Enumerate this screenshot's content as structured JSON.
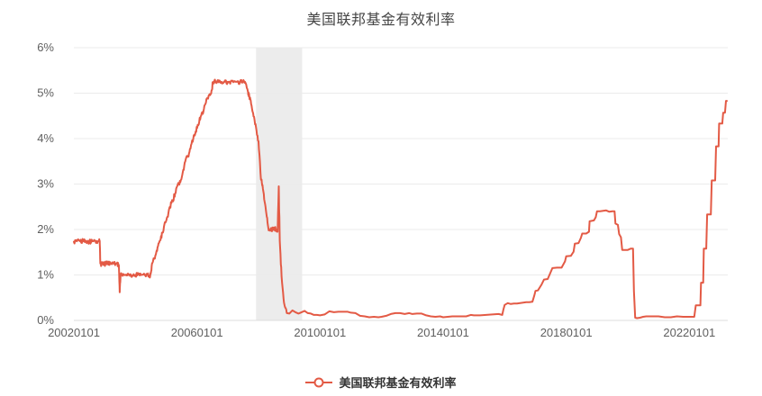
{
  "title": "美国联邦基金有效利率",
  "legend": {
    "label": "美国联邦基金有效利率"
  },
  "colors": {
    "line": "#e35a45",
    "grid": "#ebebeb",
    "axis_line": "#dddddd",
    "tick_text": "#5f5f5f",
    "title_text": "#454545",
    "band": "#ececec",
    "background": "#ffffff"
  },
  "chart_data": {
    "type": "line",
    "title": "美国联邦基金有效利率",
    "xlabel": "",
    "ylabel": "",
    "grid": "horizontal-only",
    "legend_position": "bottom-center",
    "x_range": [
      2002.0,
      2023.25
    ],
    "y_range": [
      0,
      6
    ],
    "y_ticks": [
      {
        "value": 0,
        "label": "0%"
      },
      {
        "value": 1,
        "label": "1%"
      },
      {
        "value": 2,
        "label": "2%"
      },
      {
        "value": 3,
        "label": "3%"
      },
      {
        "value": 4,
        "label": "4%"
      },
      {
        "value": 5,
        "label": "5%"
      },
      {
        "value": 6,
        "label": "6%"
      }
    ],
    "x_ticks": [
      {
        "year": 2002.0,
        "label": "20020101"
      },
      {
        "year": 2006.0,
        "label": "20060101"
      },
      {
        "year": 2010.0,
        "label": "20100101"
      },
      {
        "year": 2014.0,
        "label": "20140101"
      },
      {
        "year": 2018.0,
        "label": "20180101"
      },
      {
        "year": 2022.0,
        "label": "20220101"
      }
    ],
    "recession_band": {
      "from_year": 2007.92,
      "to_year": 2009.42,
      "color": "#ececec"
    },
    "noise_hint": {
      "until_year": 2008.95,
      "amplitude": 0.05,
      "subdivisions": 4
    },
    "series": [
      {
        "name": "美国联邦基金有效利率",
        "color": "#e35a45",
        "points": [
          [
            2002.0,
            1.73
          ],
          [
            2002.1,
            1.74
          ],
          [
            2002.2,
            1.74
          ],
          [
            2002.3,
            1.75
          ],
          [
            2002.4,
            1.75
          ],
          [
            2002.5,
            1.73
          ],
          [
            2002.6,
            1.74
          ],
          [
            2002.7,
            1.75
          ],
          [
            2002.8,
            1.75
          ],
          [
            2002.84,
            1.75
          ],
          [
            2002.86,
            1.25
          ],
          [
            2002.9,
            1.24
          ],
          [
            2003.0,
            1.24
          ],
          [
            2003.05,
            1.26
          ],
          [
            2003.1,
            1.25
          ],
          [
            2003.2,
            1.26
          ],
          [
            2003.3,
            1.25
          ],
          [
            2003.4,
            1.25
          ],
          [
            2003.46,
            1.22
          ],
          [
            2003.49,
            0.62
          ],
          [
            2003.52,
            1.01
          ],
          [
            2003.6,
            1.02
          ],
          [
            2003.7,
            1.01
          ],
          [
            2003.8,
            1.01
          ],
          [
            2003.9,
            0.99
          ],
          [
            2004.0,
            1.0
          ],
          [
            2004.1,
            1.01
          ],
          [
            2004.2,
            1.0
          ],
          [
            2004.3,
            1.0
          ],
          [
            2004.4,
            1.0
          ],
          [
            2004.45,
            0.96
          ],
          [
            2004.5,
            1.03
          ],
          [
            2004.55,
            1.26
          ],
          [
            2004.65,
            1.43
          ],
          [
            2004.72,
            1.61
          ],
          [
            2004.8,
            1.76
          ],
          [
            2004.88,
            1.93
          ],
          [
            2004.96,
            2.16
          ],
          [
            2005.04,
            2.28
          ],
          [
            2005.12,
            2.5
          ],
          [
            2005.21,
            2.63
          ],
          [
            2005.29,
            2.79
          ],
          [
            2005.38,
            3.0
          ],
          [
            2005.46,
            3.04
          ],
          [
            2005.54,
            3.26
          ],
          [
            2005.62,
            3.5
          ],
          [
            2005.71,
            3.62
          ],
          [
            2005.79,
            3.78
          ],
          [
            2005.88,
            4.0
          ],
          [
            2005.96,
            4.16
          ],
          [
            2006.04,
            4.29
          ],
          [
            2006.12,
            4.49
          ],
          [
            2006.21,
            4.59
          ],
          [
            2006.29,
            4.79
          ],
          [
            2006.38,
            4.94
          ],
          [
            2006.46,
            4.99
          ],
          [
            2006.52,
            5.24
          ],
          [
            2006.6,
            5.25
          ],
          [
            2006.7,
            5.24
          ],
          [
            2006.8,
            5.25
          ],
          [
            2006.9,
            5.25
          ],
          [
            2007.0,
            5.25
          ],
          [
            2007.1,
            5.26
          ],
          [
            2007.2,
            5.26
          ],
          [
            2007.3,
            5.25
          ],
          [
            2007.4,
            5.25
          ],
          [
            2007.5,
            5.26
          ],
          [
            2007.56,
            5.25
          ],
          [
            2007.66,
            5.02
          ],
          [
            2007.7,
            4.94
          ],
          [
            2007.76,
            4.76
          ],
          [
            2007.84,
            4.49
          ],
          [
            2007.92,
            4.24
          ],
          [
            2008.0,
            3.94
          ],
          [
            2008.08,
            3.1
          ],
          [
            2008.13,
            2.98
          ],
          [
            2008.2,
            2.61
          ],
          [
            2008.27,
            2.28
          ],
          [
            2008.33,
            1.98
          ],
          [
            2008.42,
            2.0
          ],
          [
            2008.5,
            2.01
          ],
          [
            2008.58,
            2.0
          ],
          [
            2008.62,
            1.95
          ],
          [
            2008.66,
            2.95
          ],
          [
            2008.69,
            1.75
          ],
          [
            2008.75,
            0.97
          ],
          [
            2008.83,
            0.39
          ],
          [
            2008.92,
            0.16
          ],
          [
            2009.0,
            0.15
          ],
          [
            2009.1,
            0.22
          ],
          [
            2009.2,
            0.18
          ],
          [
            2009.3,
            0.15
          ],
          [
            2009.4,
            0.18
          ],
          [
            2009.5,
            0.21
          ],
          [
            2009.6,
            0.16
          ],
          [
            2009.7,
            0.15
          ],
          [
            2009.8,
            0.12
          ],
          [
            2009.9,
            0.12
          ],
          [
            2010.0,
            0.11
          ],
          [
            2010.15,
            0.13
          ],
          [
            2010.3,
            0.2
          ],
          [
            2010.45,
            0.18
          ],
          [
            2010.6,
            0.19
          ],
          [
            2010.75,
            0.19
          ],
          [
            2010.9,
            0.19
          ],
          [
            2011.0,
            0.17
          ],
          [
            2011.15,
            0.16
          ],
          [
            2011.3,
            0.1
          ],
          [
            2011.45,
            0.09
          ],
          [
            2011.6,
            0.07
          ],
          [
            2011.75,
            0.08
          ],
          [
            2011.9,
            0.07
          ],
          [
            2012.0,
            0.08
          ],
          [
            2012.15,
            0.1
          ],
          [
            2012.3,
            0.14
          ],
          [
            2012.45,
            0.16
          ],
          [
            2012.6,
            0.16
          ],
          [
            2012.75,
            0.14
          ],
          [
            2012.9,
            0.16
          ],
          [
            2013.0,
            0.14
          ],
          [
            2013.15,
            0.15
          ],
          [
            2013.3,
            0.15
          ],
          [
            2013.45,
            0.11
          ],
          [
            2013.6,
            0.09
          ],
          [
            2013.75,
            0.08
          ],
          [
            2013.9,
            0.09
          ],
          [
            2014.0,
            0.07
          ],
          [
            2014.15,
            0.08
          ],
          [
            2014.3,
            0.09
          ],
          [
            2014.45,
            0.09
          ],
          [
            2014.6,
            0.09
          ],
          [
            2014.75,
            0.09
          ],
          [
            2014.9,
            0.12
          ],
          [
            2015.0,
            0.11
          ],
          [
            2015.2,
            0.11
          ],
          [
            2015.4,
            0.12
          ],
          [
            2015.6,
            0.13
          ],
          [
            2015.8,
            0.14
          ],
          [
            2015.92,
            0.12
          ],
          [
            2015.96,
            0.24
          ],
          [
            2016.0,
            0.34
          ],
          [
            2016.1,
            0.38
          ],
          [
            2016.2,
            0.36
          ],
          [
            2016.3,
            0.37
          ],
          [
            2016.4,
            0.37
          ],
          [
            2016.5,
            0.38
          ],
          [
            2016.6,
            0.39
          ],
          [
            2016.7,
            0.4
          ],
          [
            2016.8,
            0.4
          ],
          [
            2016.9,
            0.41
          ],
          [
            2016.96,
            0.54
          ],
          [
            2017.0,
            0.65
          ],
          [
            2017.08,
            0.66
          ],
          [
            2017.2,
            0.79
          ],
          [
            2017.28,
            0.9
          ],
          [
            2017.4,
            0.91
          ],
          [
            2017.48,
            1.04
          ],
          [
            2017.55,
            1.15
          ],
          [
            2017.7,
            1.16
          ],
          [
            2017.85,
            1.16
          ],
          [
            2017.96,
            1.3
          ],
          [
            2018.0,
            1.41
          ],
          [
            2018.15,
            1.42
          ],
          [
            2018.24,
            1.51
          ],
          [
            2018.28,
            1.69
          ],
          [
            2018.4,
            1.7
          ],
          [
            2018.48,
            1.82
          ],
          [
            2018.52,
            1.91
          ],
          [
            2018.65,
            1.91
          ],
          [
            2018.74,
            1.95
          ],
          [
            2018.76,
            2.18
          ],
          [
            2018.9,
            2.2
          ],
          [
            2018.96,
            2.27
          ],
          [
            2019.0,
            2.4
          ],
          [
            2019.1,
            2.4
          ],
          [
            2019.2,
            2.41
          ],
          [
            2019.3,
            2.42
          ],
          [
            2019.4,
            2.39
          ],
          [
            2019.5,
            2.4
          ],
          [
            2019.57,
            2.4
          ],
          [
            2019.6,
            2.13
          ],
          [
            2019.68,
            2.1
          ],
          [
            2019.72,
            1.9
          ],
          [
            2019.78,
            1.83
          ],
          [
            2019.82,
            1.55
          ],
          [
            2019.9,
            1.55
          ],
          [
            2020.0,
            1.55
          ],
          [
            2020.1,
            1.58
          ],
          [
            2020.17,
            1.58
          ],
          [
            2020.2,
            0.65
          ],
          [
            2020.24,
            0.06
          ],
          [
            2020.3,
            0.05
          ],
          [
            2020.4,
            0.06
          ],
          [
            2020.5,
            0.08
          ],
          [
            2020.6,
            0.09
          ],
          [
            2020.7,
            0.09
          ],
          [
            2020.8,
            0.09
          ],
          [
            2020.9,
            0.09
          ],
          [
            2021.0,
            0.09
          ],
          [
            2021.2,
            0.07
          ],
          [
            2021.4,
            0.07
          ],
          [
            2021.6,
            0.09
          ],
          [
            2021.8,
            0.08
          ],
          [
            2022.0,
            0.08
          ],
          [
            2022.1,
            0.08
          ],
          [
            2022.16,
            0.08
          ],
          [
            2022.21,
            0.33
          ],
          [
            2022.36,
            0.33
          ],
          [
            2022.38,
            0.83
          ],
          [
            2022.45,
            0.83
          ],
          [
            2022.47,
            1.58
          ],
          [
            2022.55,
            1.58
          ],
          [
            2022.58,
            2.33
          ],
          [
            2022.7,
            2.33
          ],
          [
            2022.73,
            3.08
          ],
          [
            2022.84,
            3.08
          ],
          [
            2022.87,
            3.83
          ],
          [
            2022.95,
            3.83
          ],
          [
            2022.97,
            4.33
          ],
          [
            2023.07,
            4.33
          ],
          [
            2023.1,
            4.57
          ],
          [
            2023.16,
            4.57
          ],
          [
            2023.19,
            4.83
          ],
          [
            2023.22,
            4.83
          ]
        ]
      }
    ]
  }
}
